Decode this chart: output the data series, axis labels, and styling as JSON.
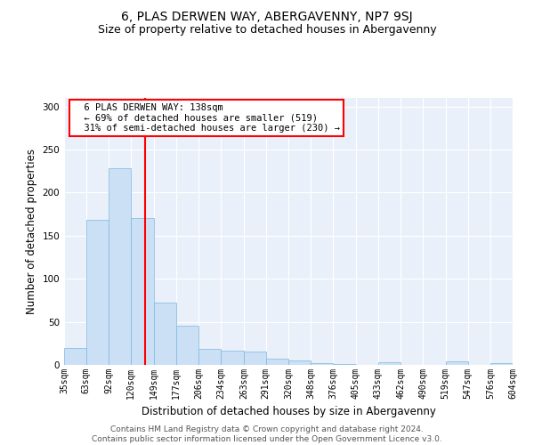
{
  "title": "6, PLAS DERWEN WAY, ABERGAVENNY, NP7 9SJ",
  "subtitle": "Size of property relative to detached houses in Abergavenny",
  "xlabel": "Distribution of detached houses by size in Abergavenny",
  "ylabel": "Number of detached properties",
  "bar_color": "#cce0f5",
  "bar_edge_color": "#7ab8e0",
  "vline_color": "red",
  "vline_x": 138,
  "bin_edges": [
    35,
    63,
    92,
    120,
    149,
    177,
    206,
    234,
    263,
    291,
    320,
    348,
    376,
    405,
    433,
    462,
    490,
    519,
    547,
    576,
    604
  ],
  "bar_heights": [
    20,
    168,
    228,
    170,
    72,
    45,
    19,
    17,
    16,
    7,
    5,
    2,
    1,
    0,
    3,
    0,
    0,
    4,
    0,
    2
  ],
  "tick_labels": [
    "35sqm",
    "63sqm",
    "92sqm",
    "120sqm",
    "149sqm",
    "177sqm",
    "206sqm",
    "234sqm",
    "263sqm",
    "291sqm",
    "320sqm",
    "348sqm",
    "376sqm",
    "405sqm",
    "433sqm",
    "462sqm",
    "490sqm",
    "519sqm",
    "547sqm",
    "576sqm",
    "604sqm"
  ],
  "ylim": [
    0,
    310
  ],
  "annotation_text": "  6 PLAS DERWEN WAY: 138sqm\n  ← 69% of detached houses are smaller (519)\n  31% of semi-detached houses are larger (230) →",
  "annotation_box_color": "white",
  "annotation_box_edge_color": "red",
  "footer1": "Contains HM Land Registry data © Crown copyright and database right 2024.",
  "footer2": "Contains public sector information licensed under the Open Government Licence v3.0.",
  "background_color": "#eaf0fa",
  "grid_color": "white",
  "title_fontsize": 10,
  "subtitle_fontsize": 9,
  "ylabel_fontsize": 8.5,
  "xlabel_fontsize": 8.5,
  "tick_fontsize": 7,
  "footer_fontsize": 6.5,
  "annotation_fontsize": 7.5
}
